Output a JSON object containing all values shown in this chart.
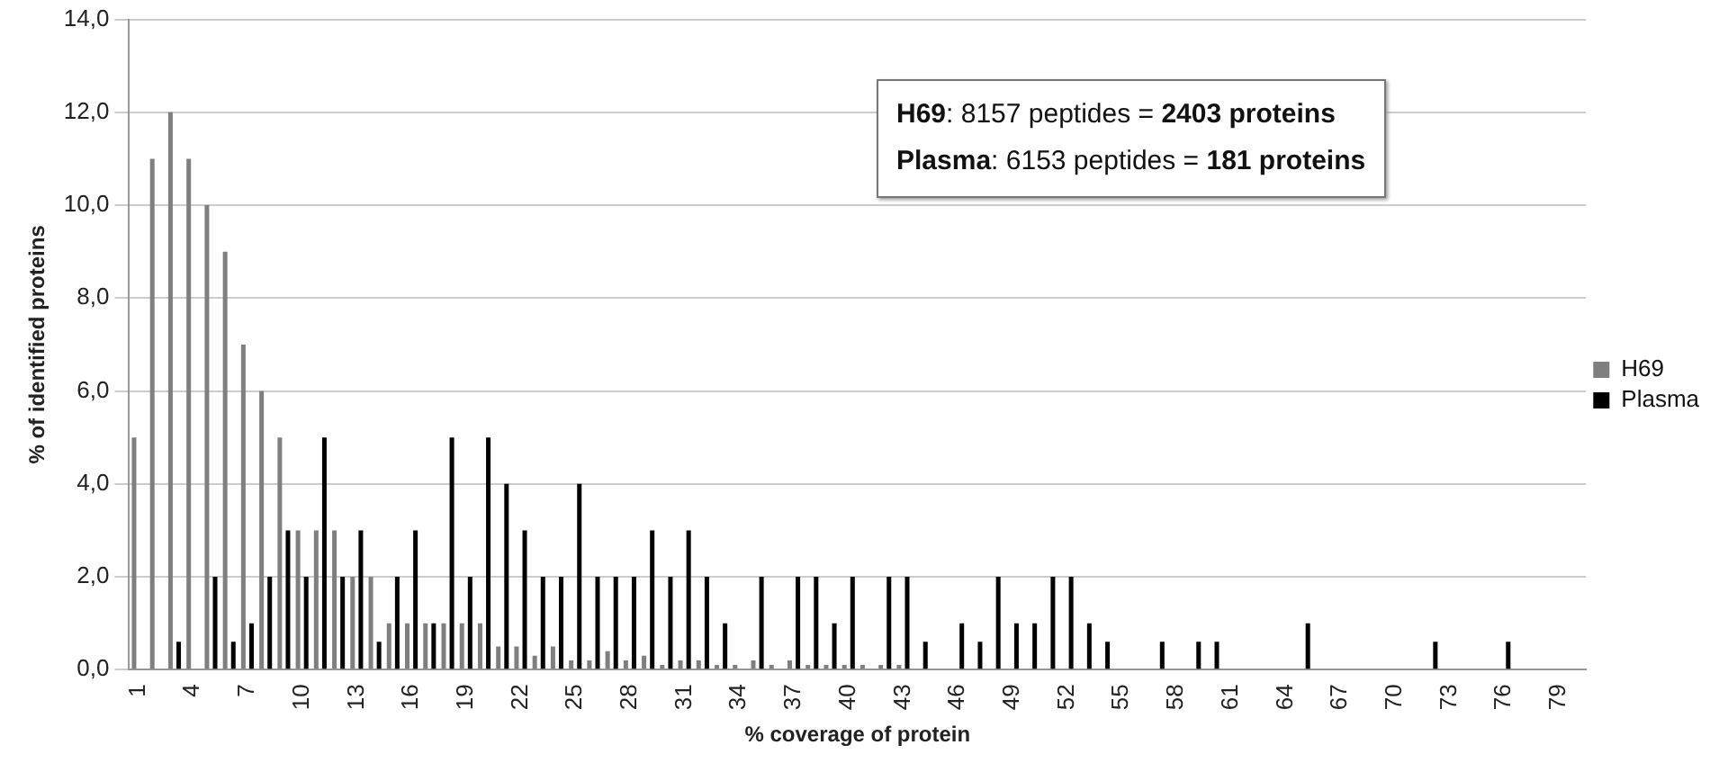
{
  "chart_data": {
    "type": "bar",
    "xlabel": "% coverage of protein",
    "ylabel": "% of identified proteins",
    "annotations": [
      "H69: 8157 peptides = 2403 proteins",
      "Plasma: 6153 peptides = 181 proteins"
    ],
    "categories": [
      "1",
      null,
      null,
      "4",
      null,
      null,
      "7",
      null,
      null,
      "10",
      null,
      null,
      "13",
      null,
      null,
      "16",
      null,
      null,
      "19",
      null,
      null,
      "22",
      null,
      null,
      "25",
      null,
      null,
      "28",
      null,
      null,
      "31",
      null,
      null,
      "34",
      null,
      null,
      "37",
      null,
      null,
      "40",
      null,
      null,
      "43",
      null,
      null,
      "46",
      null,
      null,
      "49",
      null,
      null,
      "52",
      null,
      null,
      "55",
      null,
      null,
      "58",
      null,
      null,
      "61",
      null,
      null,
      "64",
      null,
      null,
      "67",
      null,
      null,
      "70",
      null,
      null,
      "73",
      null,
      null,
      "76",
      null,
      null,
      "79",
      null
    ],
    "series": [
      {
        "name": "H69",
        "color": "#7f7f7f",
        "values": [
          5,
          11,
          12,
          11,
          10,
          9,
          7,
          6,
          5,
          3,
          3,
          3,
          2,
          2,
          1,
          1,
          1,
          1,
          1,
          1,
          0.5,
          0.5,
          0.3,
          0.5,
          0.2,
          0.2,
          0.4,
          0.2,
          0.3,
          0.1,
          0.2,
          0.2,
          0.1,
          0.1,
          0.2,
          0.1,
          0.2,
          0.1,
          0.1,
          0.1,
          0.1,
          0.1,
          0.1,
          0,
          0,
          0,
          0,
          0,
          0,
          0,
          0,
          0,
          0,
          0,
          0,
          0,
          0,
          0,
          0,
          0,
          0,
          0,
          0,
          0,
          0,
          0,
          0,
          0,
          0,
          0,
          0,
          0,
          0,
          0,
          0,
          0,
          0,
          0,
          0,
          0
        ]
      },
      {
        "name": "Plasma",
        "color": "#000000",
        "values": [
          0,
          0,
          0.6,
          0,
          2,
          0.6,
          1,
          2,
          3,
          2,
          5,
          2,
          3,
          0.6,
          2,
          3,
          1,
          5,
          2,
          5,
          4,
          3,
          2,
          2,
          4,
          2,
          2,
          2,
          3,
          2,
          3,
          2,
          1,
          0,
          2,
          0,
          2,
          2,
          1,
          2,
          0,
          2,
          2,
          0.6,
          0,
          1,
          0.6,
          2,
          1,
          1,
          2,
          2,
          1,
          0.6,
          0,
          0,
          0.6,
          0,
          0.6,
          0.6,
          0,
          0,
          0,
          0,
          1,
          0,
          0,
          0,
          0,
          0,
          0,
          0.6,
          0,
          0,
          0,
          0.6,
          0,
          0,
          0,
          0
        ]
      }
    ],
    "ylim": [
      0,
      14
    ],
    "yticks": [
      {
        "value": 0,
        "label": "0,0"
      },
      {
        "value": 2,
        "label": "2,0"
      },
      {
        "value": 4,
        "label": "4,0"
      },
      {
        "value": 6,
        "label": "6,0"
      },
      {
        "value": 8,
        "label": "8,0"
      },
      {
        "value": 10,
        "label": "10,0"
      },
      {
        "value": 12,
        "label": "12,0"
      },
      {
        "value": 14,
        "label": "14,0"
      }
    ],
    "grid": "y",
    "legend": "right"
  }
}
